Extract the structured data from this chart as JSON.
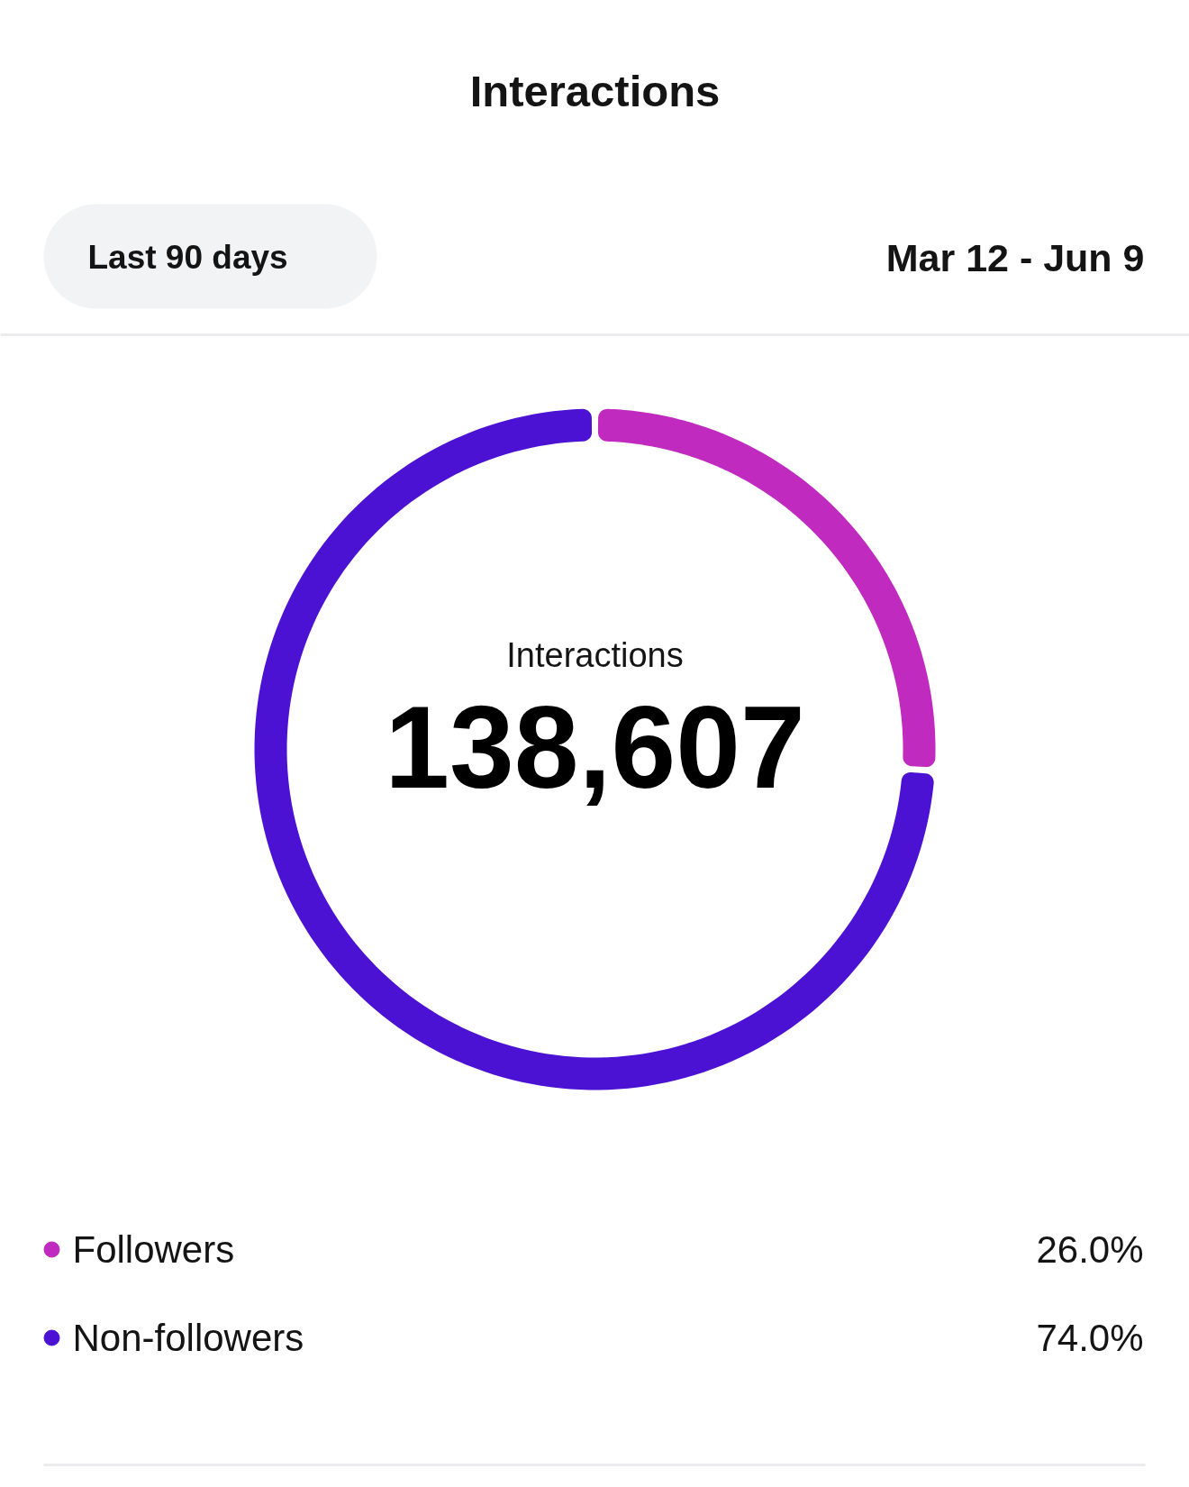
{
  "chart_data": {
    "type": "donut",
    "title": "Interactions",
    "subtitle": "Mar 12 - Jun 9",
    "annotations": [
      "Last 90 days",
      "Interactions",
      "138,607"
    ],
    "categories": [
      "Followers",
      "Non-followers"
    ],
    "values": [
      26.0,
      74.0
    ],
    "colors": [
      "#c02abe",
      "#4b12d4"
    ],
    "value_labels": [
      "26.0%",
      "74.0%"
    ],
    "legend": "bottom"
  }
}
